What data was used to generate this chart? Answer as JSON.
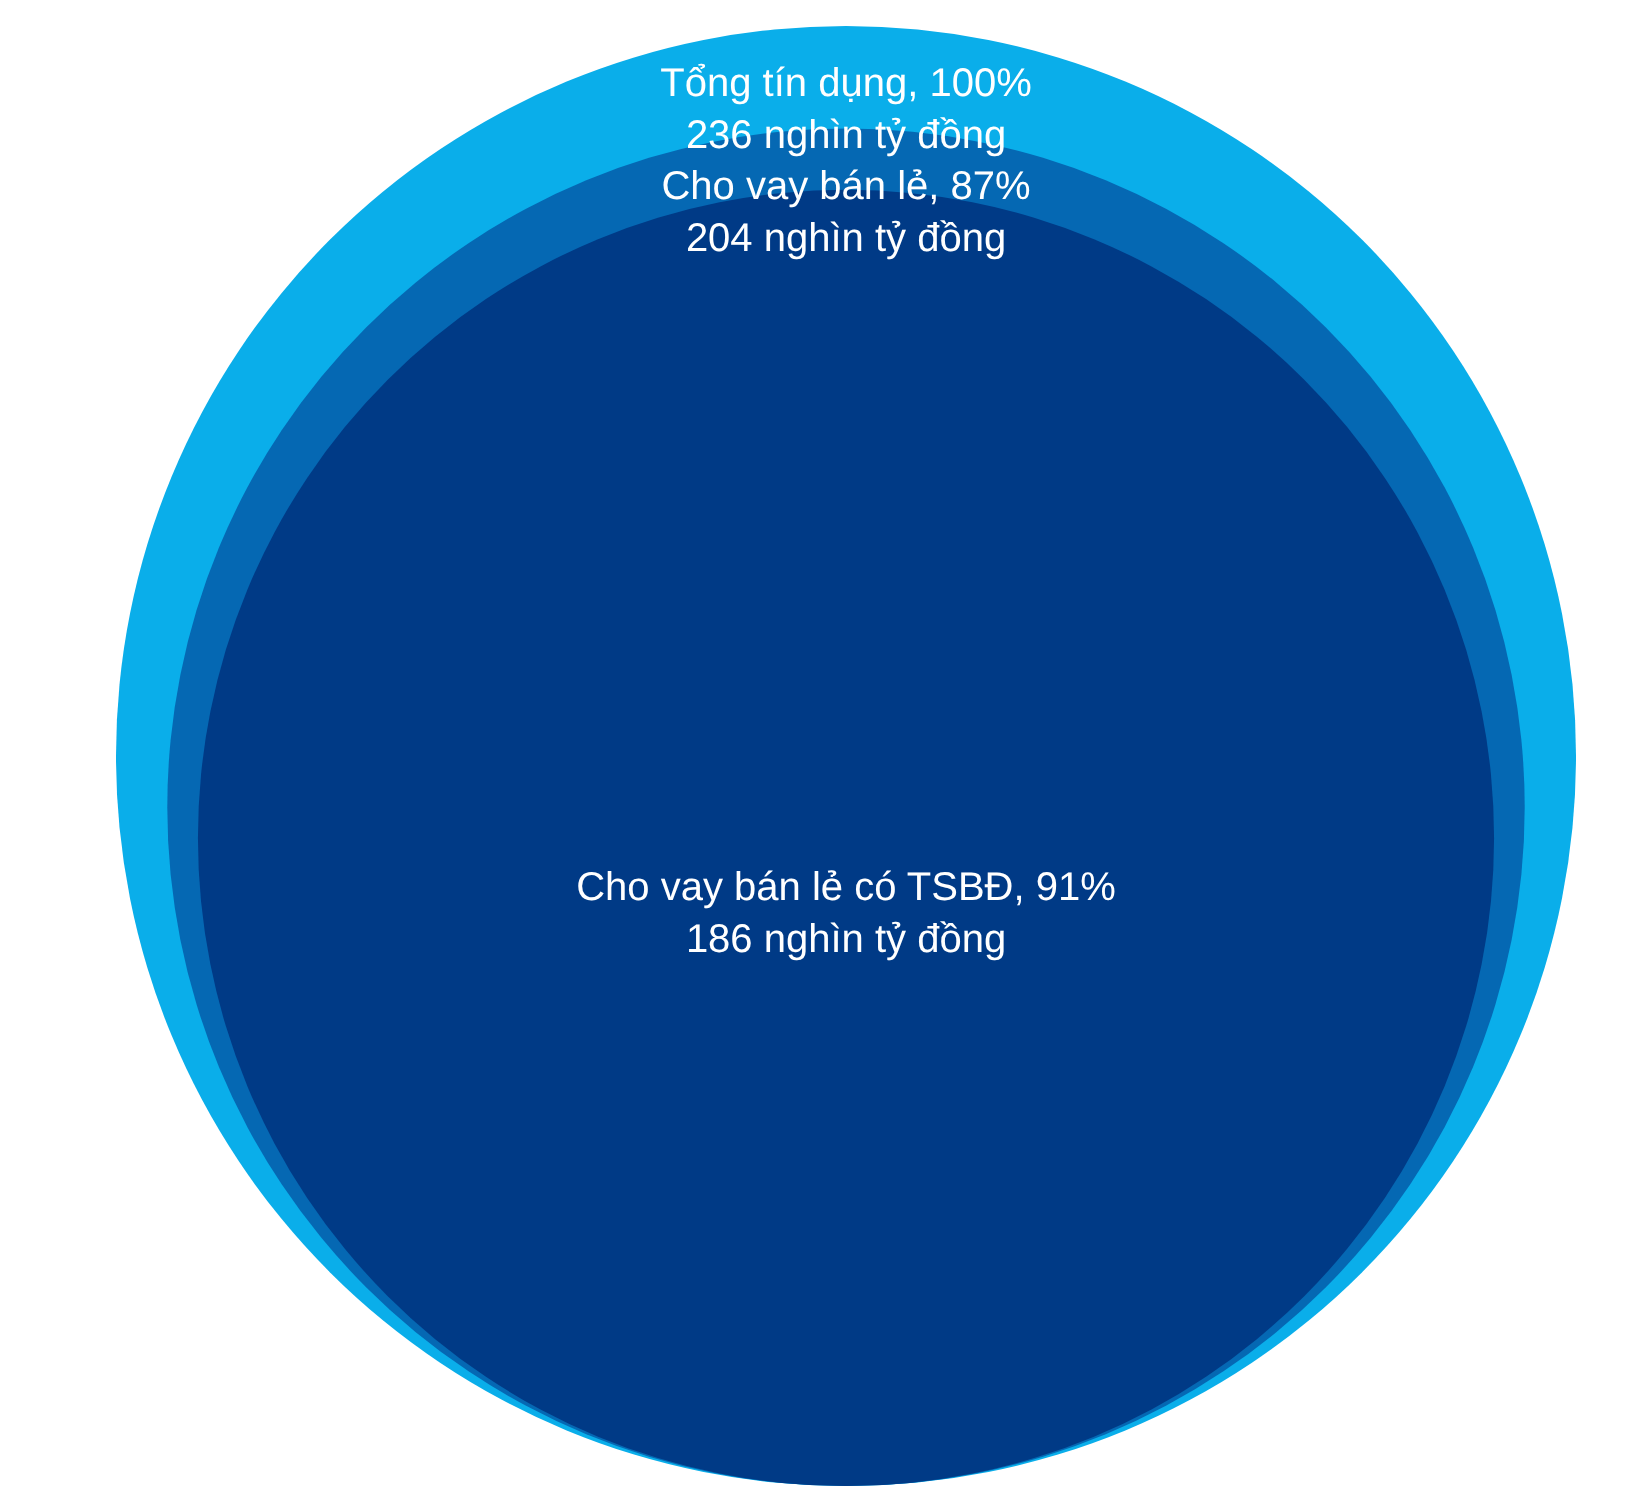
{
  "chart_data": {
    "type": "other",
    "categories": [
      "Tổng tín dụng, 100%",
      "Cho vay bán lẻ, 87%",
      "Cho vay bán lẻ có TSBĐ, 91%"
    ],
    "values": [
      236,
      204,
      186
    ],
    "value_labels": [
      "236 nghìn tỷ đồng",
      "204 nghìn tỷ đồng",
      "186 nghìn tỷ đồng"
    ],
    "colors": [
      "#0aaeea",
      "#0568b3",
      "#003a86"
    ]
  }
}
